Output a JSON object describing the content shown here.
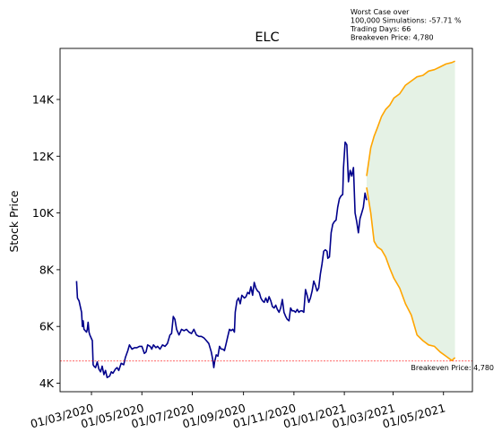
{
  "chart_data": {
    "type": "line",
    "title": "ELC",
    "ylabel": "Stock Price",
    "xlabel": "",
    "y_ticks": [
      {
        "value": 4000,
        "label": "4K"
      },
      {
        "value": 6000,
        "label": "6K"
      },
      {
        "value": 8000,
        "label": "8K"
      },
      {
        "value": 10000,
        "label": "10K"
      },
      {
        "value": 12000,
        "label": "12K"
      },
      {
        "value": 14000,
        "label": "14K"
      }
    ],
    "x_ticks": [
      {
        "date": "2020-03-01",
        "label": "01/03/2020"
      },
      {
        "date": "2020-05-01",
        "label": "01/05/2020"
      },
      {
        "date": "2020-07-01",
        "label": "01/07/2020"
      },
      {
        "date": "2020-09-01",
        "label": "01/09/2020"
      },
      {
        "date": "2020-11-01",
        "label": "01/11/2020"
      },
      {
        "date": "2021-01-01",
        "label": "01/01/2021"
      },
      {
        "date": "2021-03-01",
        "label": "01/03/2021"
      },
      {
        "date": "2021-05-01",
        "label": "01/05/2021"
      }
    ],
    "xlim": [
      "2020-01-23",
      "2021-06-05"
    ],
    "ylim": [
      3700,
      15800
    ],
    "breakeven": {
      "value": 4780,
      "label": "Breakeven Price: 4,780"
    },
    "annotation": [
      "Worst Case over",
      "100,000 Simulations: -57.71 %",
      "Trading Days: 66",
      "Breakeven Price: 4,780"
    ],
    "colors": {
      "history": "#00008B",
      "projection": "#FFA500",
      "band": "#e5f2e5",
      "breakeven": "#ff0000"
    },
    "series": [
      {
        "values": [
          [
            "2020-02-12",
            7600
          ],
          [
            "2020-02-13",
            7000
          ],
          [
            "2020-02-15",
            6900
          ],
          [
            "2020-02-18",
            6500
          ],
          [
            "2020-02-19",
            6000
          ],
          [
            "2020-02-20",
            6200
          ],
          [
            "2020-02-21",
            5900
          ],
          [
            "2020-02-24",
            5800
          ],
          [
            "2020-02-25",
            5900
          ],
          [
            "2020-02-26",
            6150
          ],
          [
            "2020-02-27",
            5800
          ],
          [
            "2020-02-28",
            5700
          ],
          [
            "2020-03-02",
            5500
          ],
          [
            "2020-03-03",
            4650
          ],
          [
            "2020-03-04",
            4600
          ],
          [
            "2020-03-06",
            4550
          ],
          [
            "2020-03-08",
            4750
          ],
          [
            "2020-03-10",
            4500
          ],
          [
            "2020-03-12",
            4400
          ],
          [
            "2020-03-14",
            4600
          ],
          [
            "2020-03-16",
            4300
          ],
          [
            "2020-03-18",
            4450
          ],
          [
            "2020-03-20",
            4200
          ],
          [
            "2020-03-23",
            4250
          ],
          [
            "2020-03-25",
            4400
          ],
          [
            "2020-03-27",
            4350
          ],
          [
            "2020-03-30",
            4500
          ],
          [
            "2020-04-01",
            4550
          ],
          [
            "2020-04-03",
            4450
          ],
          [
            "2020-04-06",
            4700
          ],
          [
            "2020-04-09",
            4650
          ],
          [
            "2020-04-11",
            4900
          ],
          [
            "2020-04-14",
            5150
          ],
          [
            "2020-04-16",
            5350
          ],
          [
            "2020-04-19",
            5200
          ],
          [
            "2020-04-22",
            5250
          ],
          [
            "2020-04-25",
            5250
          ],
          [
            "2020-04-28",
            5300
          ],
          [
            "2020-05-01",
            5300
          ],
          [
            "2020-05-04",
            5050
          ],
          [
            "2020-05-06",
            5100
          ],
          [
            "2020-05-08",
            5350
          ],
          [
            "2020-05-11",
            5300
          ],
          [
            "2020-05-13",
            5200
          ],
          [
            "2020-05-15",
            5350
          ],
          [
            "2020-05-18",
            5250
          ],
          [
            "2020-05-20",
            5300
          ],
          [
            "2020-05-23",
            5200
          ],
          [
            "2020-05-26",
            5350
          ],
          [
            "2020-05-29",
            5300
          ],
          [
            "2020-06-01",
            5400
          ],
          [
            "2020-06-04",
            5700
          ],
          [
            "2020-06-06",
            5750
          ],
          [
            "2020-06-08",
            6350
          ],
          [
            "2020-06-10",
            6250
          ],
          [
            "2020-06-12",
            5900
          ],
          [
            "2020-06-15",
            5700
          ],
          [
            "2020-06-18",
            5900
          ],
          [
            "2020-06-21",
            5850
          ],
          [
            "2020-06-24",
            5900
          ],
          [
            "2020-06-27",
            5800
          ],
          [
            "2020-06-30",
            5750
          ],
          [
            "2020-07-03",
            5900
          ],
          [
            "2020-07-06",
            5700
          ],
          [
            "2020-07-09",
            5650
          ],
          [
            "2020-07-12",
            5650
          ],
          [
            "2020-07-15",
            5600
          ],
          [
            "2020-07-18",
            5500
          ],
          [
            "2020-07-21",
            5400
          ],
          [
            "2020-07-24",
            5100
          ],
          [
            "2020-07-26",
            4800
          ],
          [
            "2020-07-27",
            4550
          ],
          [
            "2020-07-28",
            4750
          ],
          [
            "2020-07-30",
            5000
          ],
          [
            "2020-08-01",
            4950
          ],
          [
            "2020-08-03",
            5300
          ],
          [
            "2020-08-05",
            5200
          ],
          [
            "2020-08-07",
            5200
          ],
          [
            "2020-08-09",
            5150
          ],
          [
            "2020-08-11",
            5400
          ],
          [
            "2020-08-13",
            5650
          ],
          [
            "2020-08-15",
            5900
          ],
          [
            "2020-08-17",
            5850
          ],
          [
            "2020-08-19",
            5900
          ],
          [
            "2020-08-21",
            5800
          ],
          [
            "2020-08-22",
            6500
          ],
          [
            "2020-08-24",
            6900
          ],
          [
            "2020-08-26",
            7000
          ],
          [
            "2020-08-28",
            6800
          ],
          [
            "2020-08-30",
            7100
          ],
          [
            "2020-09-02",
            7000
          ],
          [
            "2020-09-04",
            7050
          ],
          [
            "2020-09-06",
            7200
          ],
          [
            "2020-09-08",
            7150
          ],
          [
            "2020-09-10",
            7400
          ],
          [
            "2020-09-12",
            7100
          ],
          [
            "2020-09-14",
            7550
          ],
          [
            "2020-09-16",
            7350
          ],
          [
            "2020-09-18",
            7250
          ],
          [
            "2020-09-20",
            7200
          ],
          [
            "2020-09-22",
            7000
          ],
          [
            "2020-09-24",
            6900
          ],
          [
            "2020-09-26",
            6850
          ],
          [
            "2020-09-28",
            7000
          ],
          [
            "2020-09-30",
            6850
          ],
          [
            "2020-10-02",
            7050
          ],
          [
            "2020-10-04",
            6900
          ],
          [
            "2020-10-06",
            6700
          ],
          [
            "2020-10-08",
            6650
          ],
          [
            "2020-10-10",
            6750
          ],
          [
            "2020-10-12",
            6600
          ],
          [
            "2020-10-14",
            6500
          ],
          [
            "2020-10-16",
            6650
          ],
          [
            "2020-10-18",
            6950
          ],
          [
            "2020-10-20",
            6500
          ],
          [
            "2020-10-22",
            6350
          ],
          [
            "2020-10-24",
            6250
          ],
          [
            "2020-10-26",
            6200
          ],
          [
            "2020-10-28",
            6650
          ],
          [
            "2020-10-30",
            6550
          ],
          [
            "2020-11-01",
            6550
          ],
          [
            "2020-11-03",
            6500
          ],
          [
            "2020-11-05",
            6600
          ],
          [
            "2020-11-07",
            6500
          ],
          [
            "2020-11-09",
            6550
          ],
          [
            "2020-11-11",
            6550
          ],
          [
            "2020-11-13",
            6500
          ],
          [
            "2020-11-15",
            7300
          ],
          [
            "2020-11-17",
            7100
          ],
          [
            "2020-11-19",
            6850
          ],
          [
            "2020-11-21",
            7000
          ],
          [
            "2020-11-23",
            7250
          ],
          [
            "2020-11-25",
            7600
          ],
          [
            "2020-11-27",
            7450
          ],
          [
            "2020-11-29",
            7250
          ],
          [
            "2020-12-01",
            7350
          ],
          [
            "2020-12-03",
            7850
          ],
          [
            "2020-12-05",
            8200
          ],
          [
            "2020-12-07",
            8650
          ],
          [
            "2020-12-09",
            8700
          ],
          [
            "2020-12-11",
            8650
          ],
          [
            "2020-12-12",
            8400
          ],
          [
            "2020-12-14",
            8450
          ],
          [
            "2020-12-16",
            9300
          ],
          [
            "2020-12-18",
            9600
          ],
          [
            "2020-12-20",
            9700
          ],
          [
            "2020-12-22",
            9750
          ],
          [
            "2020-12-24",
            10200
          ],
          [
            "2020-12-26",
            10500
          ],
          [
            "2020-12-28",
            10600
          ],
          [
            "2020-12-30",
            10650
          ],
          [
            "2020-12-31",
            11600
          ],
          [
            "2021-01-02",
            12500
          ],
          [
            "2021-01-04",
            12400
          ],
          [
            "2021-01-06",
            11100
          ],
          [
            "2021-01-08",
            11500
          ],
          [
            "2021-01-10",
            11300
          ],
          [
            "2021-01-12",
            11600
          ],
          [
            "2021-01-14",
            10000
          ],
          [
            "2021-01-16",
            9700
          ],
          [
            "2021-01-18",
            9300
          ],
          [
            "2021-01-20",
            9800
          ],
          [
            "2021-01-22",
            10000
          ],
          [
            "2021-01-24",
            10200
          ],
          [
            "2021-01-26",
            10700
          ],
          [
            "2021-01-28",
            10450
          ]
        ]
      },
      {
        "values": [
          [
            "2021-01-28",
            11300
          ],
          [
            "2021-02-02",
            12300
          ],
          [
            "2021-02-06",
            12700
          ],
          [
            "2021-02-10",
            13000
          ],
          [
            "2021-02-15",
            13400
          ],
          [
            "2021-02-20",
            13650
          ],
          [
            "2021-02-25",
            13800
          ],
          [
            "2021-03-02",
            14050
          ],
          [
            "2021-03-09",
            14200
          ],
          [
            "2021-03-16",
            14500
          ],
          [
            "2021-03-23",
            14650
          ],
          [
            "2021-03-30",
            14800
          ],
          [
            "2021-04-06",
            14850
          ],
          [
            "2021-04-13",
            15000
          ],
          [
            "2021-04-20",
            15050
          ],
          [
            "2021-04-27",
            15150
          ],
          [
            "2021-05-04",
            15250
          ],
          [
            "2021-05-11",
            15300
          ],
          [
            "2021-05-15",
            15350
          ]
        ]
      },
      {
        "values": [
          [
            "2021-01-28",
            10900
          ],
          [
            "2021-02-02",
            10000
          ],
          [
            "2021-02-06",
            9000
          ],
          [
            "2021-02-10",
            8800
          ],
          [
            "2021-02-15",
            8700
          ],
          [
            "2021-02-20",
            8450
          ],
          [
            "2021-02-25",
            8050
          ],
          [
            "2021-03-02",
            7700
          ],
          [
            "2021-03-09",
            7350
          ],
          [
            "2021-03-16",
            6800
          ],
          [
            "2021-03-23",
            6400
          ],
          [
            "2021-03-30",
            5700
          ],
          [
            "2021-04-06",
            5500
          ],
          [
            "2021-04-13",
            5350
          ],
          [
            "2021-04-20",
            5300
          ],
          [
            "2021-04-27",
            5100
          ],
          [
            "2021-05-04",
            4950
          ],
          [
            "2021-05-11",
            4800
          ],
          [
            "2021-05-15",
            4900
          ]
        ]
      }
    ]
  }
}
